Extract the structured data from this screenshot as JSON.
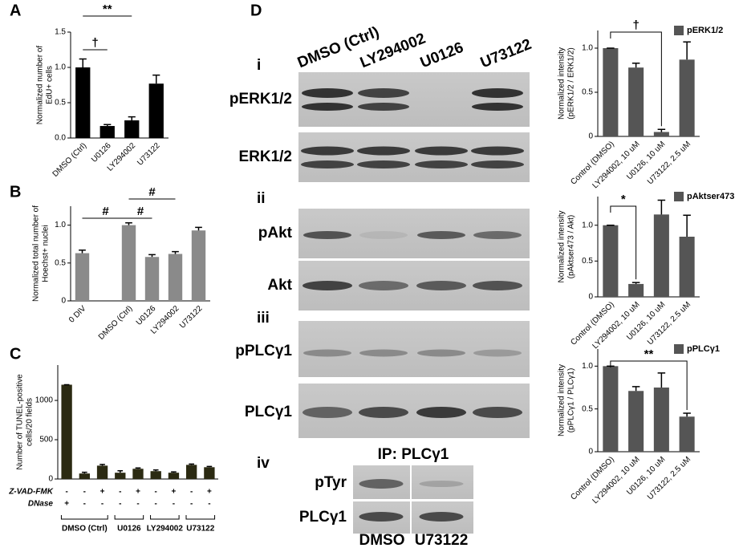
{
  "panels": {
    "a": "A",
    "b": "B",
    "c": "C",
    "d": "D"
  },
  "chart_data": [
    {
      "type": "bar",
      "ylabel": [
        "Normalized number of",
        "EdU+ cells"
      ],
      "categories": [
        "DMSO (Ctrl)",
        "U0126",
        "LY294002",
        "U73122"
      ],
      "values": [
        1.0,
        0.17,
        0.25,
        0.77
      ],
      "errors": [
        0.12,
        0.02,
        0.05,
        0.12
      ],
      "color": "#000000",
      "ylim": [
        0,
        1.5
      ],
      "yticks": [
        {
          "value": 0,
          "label": "0.0"
        },
        {
          "value": 0.5,
          "label": "0.5"
        },
        {
          "value": 1,
          "label": "1.0"
        },
        {
          "value": 1.5,
          "label": "1.5"
        }
      ],
      "annotations": [
        "†",
        "**"
      ]
    },
    {
      "type": "bar",
      "ylabel": [
        "Normalized total number of",
        "Hoechst+ nuclei"
      ],
      "categories": [
        "0 DIV",
        null,
        "DMSO (Ctrl)",
        "U0126",
        "LY294002",
        "U73122"
      ],
      "values": [
        0.63,
        null,
        1.0,
        0.58,
        0.62,
        0.93
      ],
      "errors": [
        0.04,
        null,
        0.03,
        0.03,
        0.03,
        0.04
      ],
      "color": "#8a8a8a",
      "ylim": [
        0,
        1.25
      ],
      "yticks": [
        0,
        0.5,
        {
          "value": 1,
          "label": "1.0"
        }
      ],
      "annotations": [
        "#",
        "#",
        "#"
      ]
    },
    {
      "type": "bar",
      "ylabel": [
        "Number of TUNEL-positive",
        "cells/20 fields"
      ],
      "categories": [
        null,
        null,
        null,
        null,
        null,
        null,
        null,
        null,
        null
      ],
      "values": [
        1200,
        70,
        170,
        80,
        130,
        100,
        80,
        180,
        150
      ],
      "errors": [
        0,
        15,
        15,
        25,
        10,
        15,
        10,
        10,
        10
      ],
      "color": "#2b2a12",
      "ylim": [
        0,
        1450
      ],
      "yticks": [
        0,
        500,
        1000
      ],
      "rows": [
        {
          "name": "Z-VAD-FMK",
          "labels": [
            "-",
            "-",
            "+",
            "-",
            "+",
            "-",
            "+",
            "-",
            "+"
          ]
        },
        {
          "name": "DNase",
          "labels": [
            "+",
            "-",
            "-",
            "-",
            "-",
            "-",
            "-",
            "-",
            "-"
          ]
        }
      ],
      "groups": [
        "DMSO (Ctrl)",
        "U0126",
        "LY294002",
        "U73122"
      ]
    },
    {
      "type": "bar",
      "ylabel": [
        "Normalized intensity",
        "(pERK1/2 / ERK1/2)"
      ],
      "legend": "pERK1/2",
      "categories": [
        "Control (DMSO)",
        "LY294002, 10 uM",
        "U0126, 10 uM",
        "U73122, 2.5 uM"
      ],
      "values": [
        1.0,
        0.78,
        0.05,
        0.87
      ],
      "errors": [
        0,
        0.05,
        0.03,
        0.2
      ],
      "color": "#555555",
      "ylim": [
        0,
        1.2
      ],
      "yticks": [
        0,
        0.5,
        {
          "value": 1,
          "label": "1.0"
        }
      ],
      "annotations": [
        "†"
      ]
    },
    {
      "type": "bar",
      "ylabel": [
        "Normalized intensity",
        "(pAktser473 / Akt)"
      ],
      "legend": "pAktser473",
      "categories": [
        "Control (DMSO)",
        "LY294002, 10 uM",
        "U0126, 10 uM",
        "U73122, 2.5 uM"
      ],
      "values": [
        1.0,
        0.18,
        1.15,
        0.84
      ],
      "errors": [
        0,
        0.02,
        0.2,
        0.3
      ],
      "color": "#555555",
      "ylim": [
        0,
        1.4
      ],
      "yticks": [
        0,
        0.5,
        {
          "value": 1,
          "label": "1.0"
        }
      ],
      "annotations": [
        "*"
      ]
    },
    {
      "type": "bar",
      "ylabel": [
        "Normalized intensity",
        "(pPLCγ1 / PLCγ1)"
      ],
      "legend": "pPLCγ1",
      "categories": [
        "Control (DMSO)",
        "LY294002, 10 uM",
        "U0126, 10 uM",
        "U73122, 2.5 uM"
      ],
      "values": [
        1.0,
        0.71,
        0.75,
        0.41
      ],
      "errors": [
        0,
        0.05,
        0.17,
        0.04
      ],
      "color": "#555555",
      "ylim": [
        0,
        1.2
      ],
      "yticks": [
        0,
        0.5,
        {
          "value": 1,
          "label": "1.0"
        }
      ],
      "annotations": [
        "**"
      ]
    }
  ],
  "blots": {
    "lanes": [
      "DMSO (Ctrl)",
      "LY294002",
      "U0126",
      "U73122"
    ],
    "sections": [
      "i",
      "ii",
      "iii",
      "iv"
    ],
    "rows": [
      "pERK1/2",
      "ERK1/2",
      "pAkt",
      "Akt",
      "pPLCγ1",
      "PLCγ1",
      "pTyr",
      "PLCγ1"
    ],
    "ip": "IP: PLCγ1",
    "ip_lanes": [
      "DMSO",
      "U73122"
    ]
  }
}
